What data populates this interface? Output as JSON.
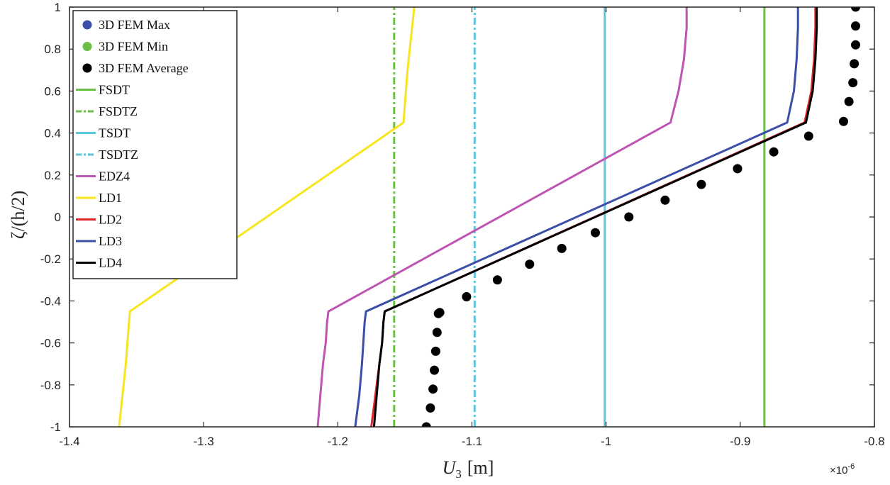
{
  "chart_data": {
    "type": "line",
    "xlabel_main": "U",
    "xlabel_sub": "3",
    "xlabel_unit": "[m]",
    "ylabel": "ζ/(h/2)",
    "x_exponent_base": "×10",
    "x_exponent_power": "-6",
    "xlim": [
      -1.4,
      -0.8
    ],
    "ylim": [
      -1,
      1
    ],
    "x_ticks": [
      -1.4,
      -1.3,
      -1.2,
      -1.1,
      -1.0,
      -0.9,
      -0.8
    ],
    "x_tick_labels": [
      "-1.4",
      "-1.3",
      "-1.2",
      "-1.1",
      "-1",
      "-0.9",
      "-0.8"
    ],
    "y_ticks": [
      -1,
      -0.8,
      -0.6,
      -0.4,
      -0.2,
      0,
      0.2,
      0.4,
      0.6,
      0.8,
      1
    ],
    "y_tick_labels": [
      "-1",
      "-0.8",
      "-0.6",
      "-0.4",
      "-0.2",
      "0",
      "0.2",
      "0.4",
      "0.6",
      "0.8",
      "1"
    ],
    "legend_position": "top-left",
    "series": [
      {
        "name": "3D FEM Max",
        "kind": "marker",
        "color": "#3b4fa8",
        "x": [],
        "y": []
      },
      {
        "name": "3D FEM Min",
        "kind": "marker",
        "color": "#6cbf45",
        "x": [],
        "y": []
      },
      {
        "name": "3D FEM Average",
        "kind": "marker",
        "color": "#000000",
        "x": [
          -1.134,
          -1.131,
          -1.129,
          -1.128,
          -1.127,
          -1.126,
          -1.125,
          -1.124,
          -1.104,
          -1.081,
          -1.057,
          -1.033,
          -1.008,
          -0.983,
          -0.956,
          -0.929,
          -0.902,
          -0.875,
          -0.849,
          -0.823,
          -0.819,
          -0.816,
          -0.815,
          -0.814,
          -0.814,
          -0.814
        ],
        "y": [
          -1.0,
          -0.91,
          -0.82,
          -0.73,
          -0.64,
          -0.55,
          -0.46,
          -0.455,
          -0.38,
          -0.3,
          -0.225,
          -0.15,
          -0.075,
          0.0,
          0.08,
          0.155,
          0.23,
          0.31,
          0.385,
          0.455,
          0.55,
          0.64,
          0.73,
          0.82,
          0.91,
          1.0
        ]
      },
      {
        "name": "FSDT",
        "kind": "line",
        "dash": "solid",
        "color": "#6cbf45",
        "x": [
          -0.882,
          -0.882
        ],
        "y": [
          -1,
          1
        ]
      },
      {
        "name": "FSDTZ",
        "kind": "line",
        "dash": "dashdot",
        "color": "#6cbf45",
        "x": [
          -1.158,
          -1.158
        ],
        "y": [
          -1,
          1
        ]
      },
      {
        "name": "TSDT",
        "kind": "line",
        "dash": "solid",
        "color": "#5ec6da",
        "x": [
          -1.001,
          -1.001
        ],
        "y": [
          -1,
          1
        ]
      },
      {
        "name": "TSDTZ",
        "kind": "line",
        "dash": "dashdot",
        "color": "#5ec6da",
        "x": [
          -1.098,
          -1.098
        ],
        "y": [
          -1,
          1
        ]
      },
      {
        "name": "EDZ4",
        "kind": "line",
        "dash": "solid",
        "color": "#bf55b3",
        "x": [
          -1.215,
          -1.213,
          -1.211,
          -1.209,
          -1.208,
          -1.207,
          -0.952,
          -0.946,
          -0.942,
          -0.94,
          -0.94
        ],
        "y": [
          -1,
          -0.85,
          -0.7,
          -0.6,
          -0.5,
          -0.45,
          0.45,
          0.6,
          0.75,
          0.9,
          1
        ]
      },
      {
        "name": "LD1",
        "kind": "line",
        "dash": "solid",
        "color": "#f7e51e",
        "x": [
          -1.363,
          -1.358,
          -1.355,
          -1.151,
          -1.148,
          -1.143
        ],
        "y": [
          -1,
          -0.7,
          -0.45,
          0.45,
          0.7,
          1
        ]
      },
      {
        "name": "LD2",
        "kind": "line",
        "dash": "solid",
        "color": "#e0262b",
        "x": [
          -1.175,
          -1.172,
          -1.169,
          -1.167,
          -1.166,
          -1.165,
          -0.852,
          -0.847,
          -0.845,
          -0.844,
          -0.844
        ],
        "y": [
          -1,
          -0.85,
          -0.7,
          -0.6,
          -0.5,
          -0.45,
          0.45,
          0.6,
          0.75,
          0.9,
          1
        ]
      },
      {
        "name": "LD3",
        "kind": "line",
        "dash": "solid",
        "color": "#3b4fa8",
        "x": [
          -1.187,
          -1.184,
          -1.182,
          -1.181,
          -1.18,
          -1.179,
          -0.865,
          -0.86,
          -0.858,
          -0.857,
          -0.857
        ],
        "y": [
          -1,
          -0.85,
          -0.7,
          -0.6,
          -0.5,
          -0.45,
          0.45,
          0.6,
          0.75,
          0.9,
          1
        ]
      },
      {
        "name": "LD4",
        "kind": "line",
        "dash": "solid",
        "color": "#000000",
        "x": [
          -1.173,
          -1.171,
          -1.169,
          -1.167,
          -1.166,
          -1.165,
          -0.851,
          -0.846,
          -0.844,
          -0.843,
          -0.843
        ],
        "y": [
          -1,
          -0.85,
          -0.7,
          -0.6,
          -0.5,
          -0.45,
          0.45,
          0.6,
          0.75,
          0.9,
          1
        ]
      }
    ]
  }
}
